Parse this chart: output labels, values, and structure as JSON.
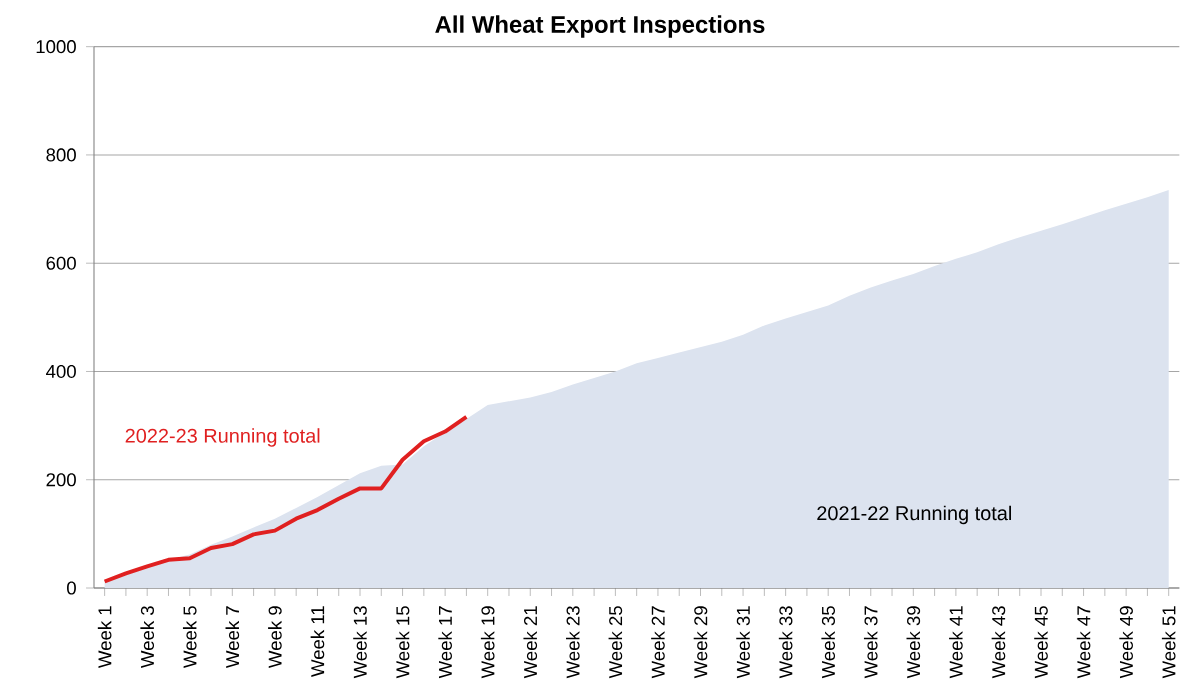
{
  "chart_data": {
    "type": "area",
    "title": "All Wheat Export Inspections",
    "categories": [
      "Week 1",
      null,
      "Week 3",
      null,
      "Week 5",
      null,
      "Week 7",
      null,
      "Week 9",
      null,
      "Week 11",
      null,
      "Week 13",
      null,
      "Week 15",
      null,
      "Week 17",
      null,
      "Week 19",
      null,
      "Week 21",
      null,
      "Week 23",
      null,
      "Week 25",
      null,
      "Week 27",
      null,
      "Week 29",
      null,
      "Week 31",
      null,
      "Week 33",
      null,
      "Week 35",
      null,
      "Week 37",
      null,
      "Week 39",
      null,
      "Week 41",
      null,
      "Week 43",
      null,
      "Week 45",
      null,
      "Week 47",
      null,
      "Week 49",
      null,
      "Week 51"
    ],
    "series": [
      {
        "name": "2021-22 Running total",
        "color": "#dce3ef",
        "values": [
          15,
          28,
          40,
          52,
          62,
          80,
          95,
          112,
          128,
          148,
          168,
          190,
          212,
          226,
          228,
          262,
          288,
          312,
          338,
          345,
          352,
          362,
          376,
          388,
          400,
          415,
          425,
          435,
          445,
          455,
          468,
          485,
          498,
          510,
          522,
          540,
          555,
          568,
          580,
          595,
          608,
          620,
          635,
          648,
          660,
          672,
          685,
          698,
          710,
          722,
          735
        ]
      },
      {
        "name": "2022-23 Running total",
        "type": "line",
        "color": "#e02020",
        "values": [
          12,
          27,
          40,
          52,
          55,
          74,
          81,
          99,
          106,
          128,
          144,
          165,
          184,
          184,
          237,
          271,
          289,
          316,
          null,
          null,
          null,
          null,
          null,
          null,
          null,
          null,
          null,
          null,
          null,
          null,
          null,
          null,
          null,
          null,
          null,
          null,
          null,
          null,
          null,
          null,
          null,
          null,
          null,
          null,
          null,
          null,
          null,
          null,
          null,
          null,
          null
        ]
      }
    ],
    "ylim": [
      0,
      1000
    ],
    "yticks": [
      0,
      200,
      400,
      600,
      800,
      1000
    ],
    "grid": "y"
  }
}
